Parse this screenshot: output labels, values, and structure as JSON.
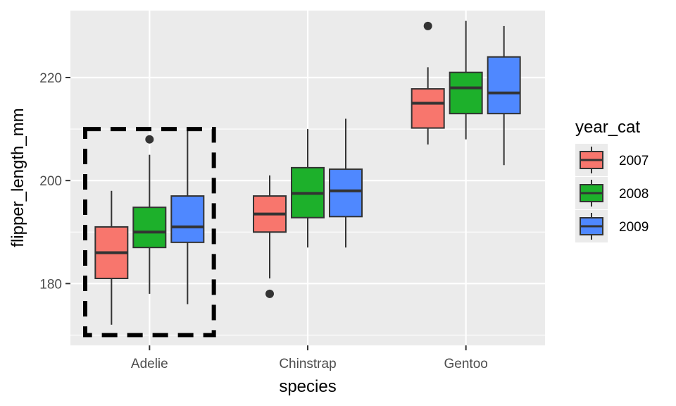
{
  "chart_data": {
    "type": "box",
    "xlabel": "species",
    "ylabel": "flipper_length_mm",
    "categories": [
      "Adelie",
      "Chinstrap",
      "Gentoo"
    ],
    "ylim": [
      168,
      233
    ],
    "yticks": [
      180,
      200,
      220
    ],
    "grid": true,
    "legend": {
      "title": "year_cat",
      "position": "right",
      "entries": [
        "2007",
        "2008",
        "2009"
      ]
    },
    "colors": {
      "2007": "#F8766D",
      "2008": "#1DB02B",
      "2009": "#4F88FF",
      "panel": "#EBEBEB",
      "grid": "#FFFFFF",
      "outline": "#333333"
    },
    "series": [
      {
        "name": "2007",
        "boxes": [
          {
            "category": "Adelie",
            "lower_whisker": 172,
            "q1": 181,
            "median": 186,
            "q3": 191,
            "upper_whisker": 198,
            "outliers": []
          },
          {
            "category": "Chinstrap",
            "lower_whisker": 181,
            "q1": 190,
            "median": 193.5,
            "q3": 197,
            "upper_whisker": 201,
            "outliers": [
              178
            ]
          },
          {
            "category": "Gentoo",
            "lower_whisker": 207,
            "q1": 210.2,
            "median": 215,
            "q3": 217.8,
            "upper_whisker": 222,
            "outliers": [
              230
            ]
          }
        ]
      },
      {
        "name": "2008",
        "boxes": [
          {
            "category": "Adelie",
            "lower_whisker": 178,
            "q1": 187,
            "median": 190,
            "q3": 194.8,
            "upper_whisker": 205,
            "outliers": [
              208
            ]
          },
          {
            "category": "Chinstrap",
            "lower_whisker": 187,
            "q1": 192.8,
            "median": 197.5,
            "q3": 202.5,
            "upper_whisker": 210,
            "outliers": []
          },
          {
            "category": "Gentoo",
            "lower_whisker": 208,
            "q1": 213,
            "median": 218,
            "q3": 221,
            "upper_whisker": 231,
            "outliers": []
          }
        ]
      },
      {
        "name": "2009",
        "boxes": [
          {
            "category": "Adelie",
            "lower_whisker": 176,
            "q1": 188,
            "median": 191,
            "q3": 197,
            "upper_whisker": 210,
            "outliers": []
          },
          {
            "category": "Chinstrap",
            "lower_whisker": 187,
            "q1": 193,
            "median": 198,
            "q3": 202.2,
            "upper_whisker": 212,
            "outliers": []
          },
          {
            "category": "Gentoo",
            "lower_whisker": 203,
            "q1": 213,
            "median": 217,
            "q3": 224,
            "upper_whisker": 230,
            "outliers": []
          }
        ]
      }
    ],
    "annotations": [
      {
        "type": "dashed-rectangle",
        "category": "Adelie",
        "y_range": [
          170,
          210
        ]
      }
    ]
  }
}
